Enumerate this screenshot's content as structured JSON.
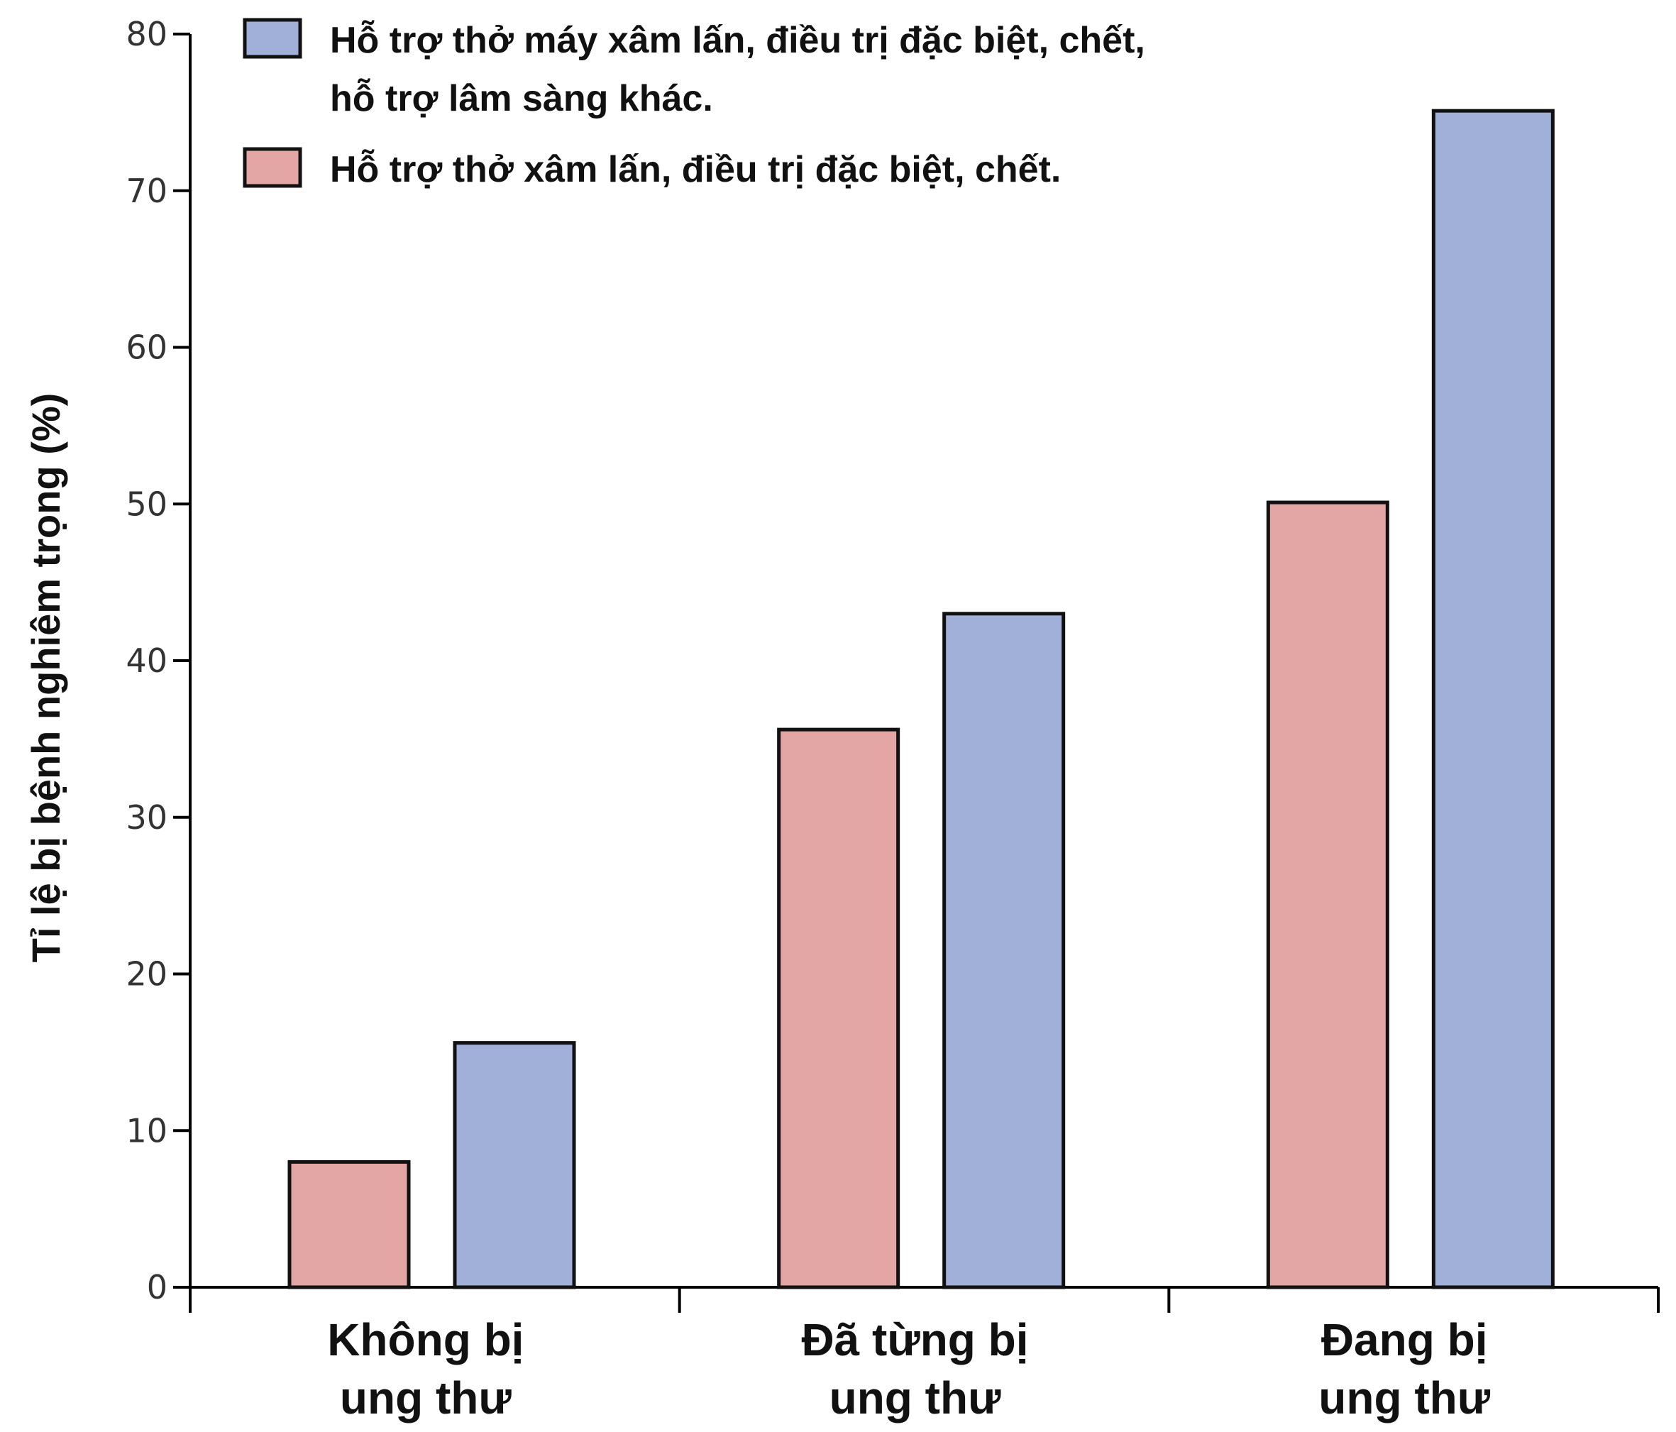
{
  "chart_data": {
    "type": "bar",
    "title": "",
    "xlabel": "",
    "ylabel": "Tỉ lệ bị bệnh nghiêm trọng (%)",
    "ylim": [
      0,
      80
    ],
    "yticks": [
      "0",
      "10",
      "20",
      "30",
      "40",
      "50",
      "60",
      "70",
      "80"
    ],
    "categories": [
      [
        "Không bị",
        "ung thư"
      ],
      [
        "Đã từng bị",
        "ung thư"
      ],
      [
        "Đang bị",
        "ung thư"
      ]
    ],
    "series": [
      {
        "legend_lines": [
          "Hỗ trợ thở xâm lấn, điều trị đặc biệt, chết."
        ],
        "values": [
          8,
          35.6,
          50.1
        ],
        "color": "#e3a6a4"
      },
      {
        "legend_lines": [
          "Hỗ trợ thở máy xâm lấn, điều trị đặc biệt, chết,",
          "hỗ trợ lâm sàng khác."
        ],
        "values": [
          15.6,
          43,
          75.1
        ],
        "color": "#a1b0d9"
      }
    ],
    "legend_order": [
      1,
      0
    ],
    "legend_position": "top-left",
    "grid": false
  }
}
